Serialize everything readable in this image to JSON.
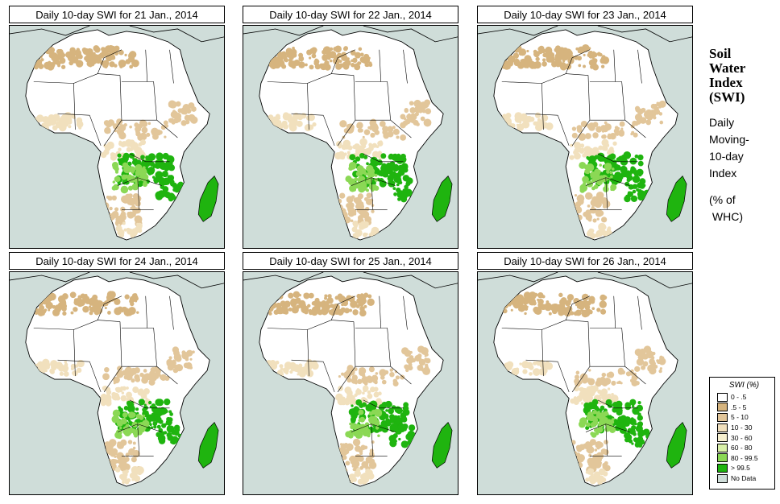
{
  "panels": [
    {
      "title": "Daily 10-day SWI for  21 Jan., 2014"
    },
    {
      "title": "Daily 10-day SWI for  22 Jan., 2014"
    },
    {
      "title": "Daily 10-day SWI for  23 Jan., 2014"
    },
    {
      "title": "Daily 10-day SWI for  24 Jan., 2014"
    },
    {
      "title": "Daily 10-day SWI for  25 Jan., 2014"
    },
    {
      "title": "Daily 10-day SWI for  26 Jan., 2014"
    }
  ],
  "side": {
    "title_lines": [
      "Soil",
      "Water",
      "Index",
      "(SWI)"
    ],
    "desc_lines": [
      "Daily",
      "Moving-",
      "10-day",
      "Index"
    ],
    "unit_lines": [
      "(% of",
      " WHC)"
    ]
  },
  "legend": {
    "title": "SWI (%)",
    "items": [
      {
        "label": "0 - .5",
        "color": "#ffffff"
      },
      {
        "label": ".5 - 5",
        "color": "#d6b47e"
      },
      {
        "label": "5 - 10",
        "color": "#e2c69a"
      },
      {
        "label": "10 - 30",
        "color": "#f1e0bd"
      },
      {
        "label": "30 - 60",
        "color": "#f7f0cf"
      },
      {
        "label": "60 - 80",
        "color": "#d9f0a8"
      },
      {
        "label": "80 - 99.5",
        "color": "#8bd855"
      },
      {
        "label": "> 99.5",
        "color": "#1fb40f"
      },
      {
        "label": "No Data",
        "color": "#cfddd9"
      }
    ]
  },
  "colors": {
    "ocean": "#cfddd9",
    "land": "#ffffff",
    "very_dry": "#d6b47e",
    "dry": "#e2c69a",
    "moderate": "#f1e0bd",
    "wet": "#1fb40f",
    "moist": "#8bd855"
  }
}
